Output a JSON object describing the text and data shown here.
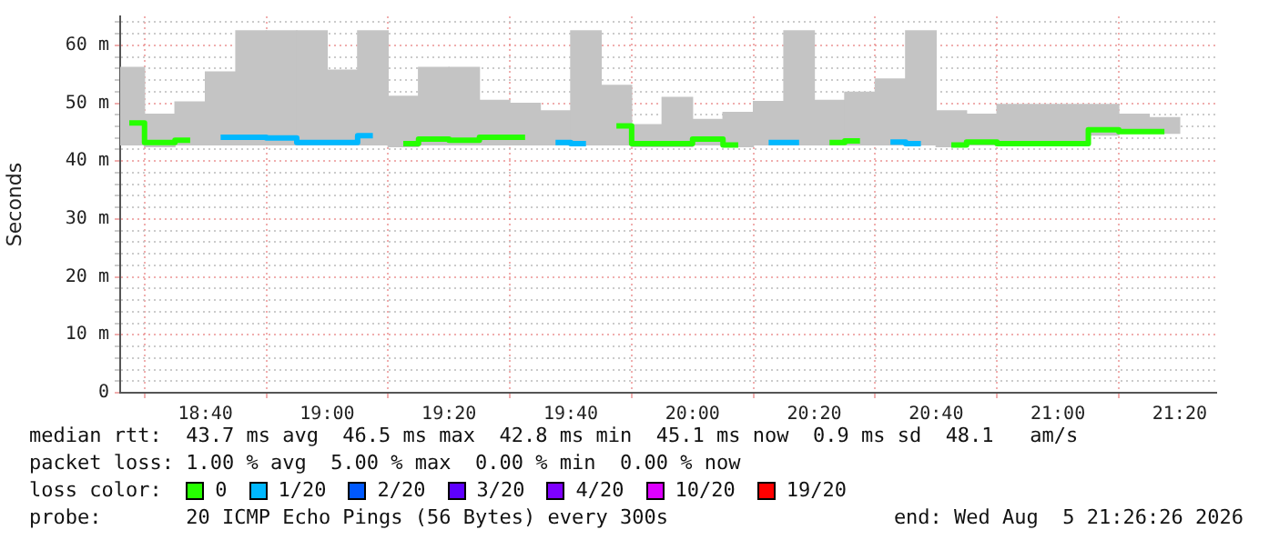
{
  "chart_data": {
    "type": "bar",
    "ylabel": "Seconds",
    "x": [
      "2026-08-05T18:27:30",
      "2026-08-05T18:32:30",
      "2026-08-05T18:37:30",
      "2026-08-05T18:42:30",
      "2026-08-05T18:47:30",
      "2026-08-05T18:52:30",
      "2026-08-05T18:57:30",
      "2026-08-05T19:02:30",
      "2026-08-05T19:07:30",
      "2026-08-05T19:12:30",
      "2026-08-05T19:17:30",
      "2026-08-05T19:22:30",
      "2026-08-05T19:27:30",
      "2026-08-05T19:32:30",
      "2026-08-05T19:37:30",
      "2026-08-05T19:42:30",
      "2026-08-05T19:47:30",
      "2026-08-05T19:52:30",
      "2026-08-05T19:57:30",
      "2026-08-05T20:02:30",
      "2026-08-05T20:07:30",
      "2026-08-05T20:12:30",
      "2026-08-05T20:17:30",
      "2026-08-05T20:22:30",
      "2026-08-05T20:27:30",
      "2026-08-05T20:32:30",
      "2026-08-05T20:37:30",
      "2026-08-05T20:42:30",
      "2026-08-05T20:47:30",
      "2026-08-05T20:52:30",
      "2026-08-05T20:57:30",
      "2026-08-05T21:02:30",
      "2026-08-05T21:07:30",
      "2026-08-05T21:12:30",
      "2026-08-05T21:17:30"
    ],
    "series": [
      {
        "color": "#c4c4c4",
        "base": [
          42.8,
          42.5,
          42.8,
          42.8,
          42.8,
          42.8,
          42.8,
          42.8,
          42.8,
          42.5,
          42.8,
          42.8,
          42.8,
          42.8,
          42.8,
          42.8,
          42.8,
          42.5,
          42.5,
          42.8,
          42.5,
          42.8,
          42.8,
          42.8,
          42.8,
          42.8,
          42.8,
          42.5,
          42.8,
          42.8,
          42.8,
          42.8,
          44.5,
          44.8,
          44.8
        ],
        "values": [
          13.4,
          5.6,
          7.4,
          12.6,
          19.7,
          19.7,
          19.7,
          12.9,
          19.7,
          8.7,
          13.4,
          13.4,
          7.7,
          7.2,
          5.9,
          19.7,
          10.3,
          3.8,
          8.5,
          4.4,
          5.9,
          7.5,
          19.7,
          7.7,
          9.1,
          11.4,
          19.7,
          6.2,
          5.3,
          7.0,
          7.0,
          7.0,
          5.3,
          3.3,
          2.7
        ]
      },
      {
        "type": "step",
        "name": "0",
        "color": "#26ff00",
        "values": [
          46.6,
          43.2,
          43.6,
          null,
          null,
          null,
          null,
          null,
          null,
          43.0,
          43.8,
          43.6,
          44.1,
          44.1,
          null,
          null,
          46.1,
          43.0,
          43.0,
          43.8,
          42.8,
          null,
          null,
          43.2,
          43.5,
          null,
          null,
          42.8,
          43.3,
          43.0,
          43.0,
          43.0,
          45.4,
          45.1,
          45.1
        ]
      },
      {
        "type": "step",
        "name": "1/20",
        "color": "#00b8ff",
        "values": [
          null,
          null,
          null,
          44.1,
          44.1,
          44.0,
          43.2,
          43.2,
          44.4,
          null,
          null,
          null,
          null,
          null,
          43.2,
          43.0,
          null,
          null,
          null,
          null,
          null,
          43.2,
          43.2,
          null,
          null,
          43.3,
          43.0,
          null,
          null,
          null,
          null,
          null,
          null,
          null,
          null
        ]
      },
      {
        "type": "step",
        "name": "2/20",
        "color": "#0059ff",
        "values": [
          null,
          null,
          null,
          null,
          null,
          null,
          null,
          null,
          null,
          null,
          null,
          null,
          null,
          null,
          null,
          null,
          null,
          null,
          null,
          null,
          null,
          null,
          null,
          null,
          null,
          null,
          null,
          null,
          null,
          null,
          null,
          null,
          null,
          null,
          null
        ]
      },
      {
        "type": "step",
        "name": "3/20",
        "color": "#5e00ff",
        "values": [
          null,
          null,
          null,
          null,
          null,
          null,
          null,
          null,
          null,
          null,
          null,
          null,
          null,
          null,
          null,
          null,
          null,
          null,
          null,
          null,
          null,
          null,
          null,
          null,
          null,
          null,
          null,
          null,
          null,
          null,
          null,
          null,
          null,
          null,
          null
        ]
      },
      {
        "type": "step",
        "name": "4/20",
        "color": "#7e00ff",
        "values": [
          null,
          null,
          null,
          null,
          null,
          null,
          null,
          null,
          null,
          null,
          null,
          null,
          null,
          null,
          null,
          null,
          null,
          null,
          null,
          null,
          null,
          null,
          null,
          null,
          null,
          null,
          null,
          null,
          null,
          null,
          null,
          null,
          null,
          null,
          null
        ]
      },
      {
        "type": "step",
        "name": "10/20",
        "color": "#dd00ff",
        "values": [
          null,
          null,
          null,
          null,
          null,
          null,
          null,
          null,
          null,
          null,
          null,
          null,
          null,
          null,
          null,
          null,
          null,
          null,
          null,
          null,
          null,
          null,
          null,
          null,
          null,
          null,
          null,
          null,
          null,
          null,
          null,
          null,
          null,
          null,
          null
        ]
      },
      {
        "type": "step",
        "name": "19/20",
        "color": "#ff0000",
        "values": [
          null,
          null,
          null,
          null,
          null,
          null,
          null,
          null,
          null,
          null,
          null,
          null,
          null,
          null,
          null,
          null,
          null,
          null,
          null,
          null,
          null,
          null,
          null,
          null,
          null,
          null,
          null,
          null,
          null,
          null,
          null,
          null,
          null,
          null,
          null
        ]
      }
    ],
    "xlim": [
      "2026-08-05T18:26",
      "2026-08-05T21:26"
    ],
    "xticks": [
      {
        "value": "2026-08-05T18:40",
        "label": "18:40"
      },
      {
        "value": "2026-08-05T19:00",
        "label": "19:00"
      },
      {
        "value": "2026-08-05T19:20",
        "label": "19:20"
      },
      {
        "value": "2026-08-05T19:40",
        "label": "19:40"
      },
      {
        "value": "2026-08-05T20:00",
        "label": "20:00"
      },
      {
        "value": "2026-08-05T20:20",
        "label": "20:20"
      },
      {
        "value": "2026-08-05T20:40",
        "label": "20:40"
      },
      {
        "value": "2026-08-05T21:00",
        "label": "21:00"
      },
      {
        "value": "2026-08-05T21:20",
        "label": "21:20"
      }
    ],
    "ylim": [
      0,
      65
    ],
    "yticks": [
      0,
      {
        "value": 2,
        "label": null
      },
      {
        "value": 4,
        "label": null
      },
      {
        "value": 6,
        "label": null
      },
      {
        "value": 8,
        "label": null
      },
      {
        "value": 10,
        "label": "10 m"
      },
      {
        "value": 12,
        "label": null
      },
      {
        "value": 14,
        "label": null
      },
      {
        "value": 16,
        "label": null
      },
      {
        "value": 18,
        "label": null
      },
      {
        "value": 20,
        "label": "20 m"
      },
      {
        "value": 22,
        "label": null
      },
      {
        "value": 24,
        "label": null
      },
      {
        "value": 26,
        "label": null
      },
      {
        "value": 28,
        "label": null
      },
      {
        "value": 30,
        "label": "30 m"
      },
      {
        "value": 32,
        "label": null
      },
      {
        "value": 34,
        "label": null
      },
      {
        "value": 36,
        "label": null
      },
      {
        "value": 38,
        "label": null
      },
      {
        "value": 40,
        "label": "40 m"
      },
      {
        "value": 42,
        "label": null
      },
      {
        "value": 44,
        "label": null
      },
      {
        "value": 46,
        "label": null
      },
      {
        "value": 48,
        "label": null
      },
      {
        "value": 50,
        "label": "50 m"
      },
      {
        "value": 52,
        "label": null
      },
      {
        "value": 54,
        "label": null
      },
      {
        "value": 56,
        "label": null
      },
      {
        "value": 58,
        "label": null
      },
      {
        "value": 60,
        "label": "60 m"
      },
      {
        "value": 62,
        "label": null
      },
      {
        "value": 64,
        "label": null
      }
    ],
    "grid": true,
    "legend": "bottom",
    "legend_title": "loss color:",
    "annotations": [
      "median rtt:  43.7 ms avg  46.5 ms max  42.8 ms min  45.1 ms now  0.9 ms sd  48.1   am/s",
      "packet loss: 1.00 % avg  5.00 % max  0.00 % min  0.00 % now",
      "probe:       20 ICMP Echo Pings (56 Bytes) every 300s",
      "end: Wed Aug  5 21:26:26 2026"
    ]
  }
}
